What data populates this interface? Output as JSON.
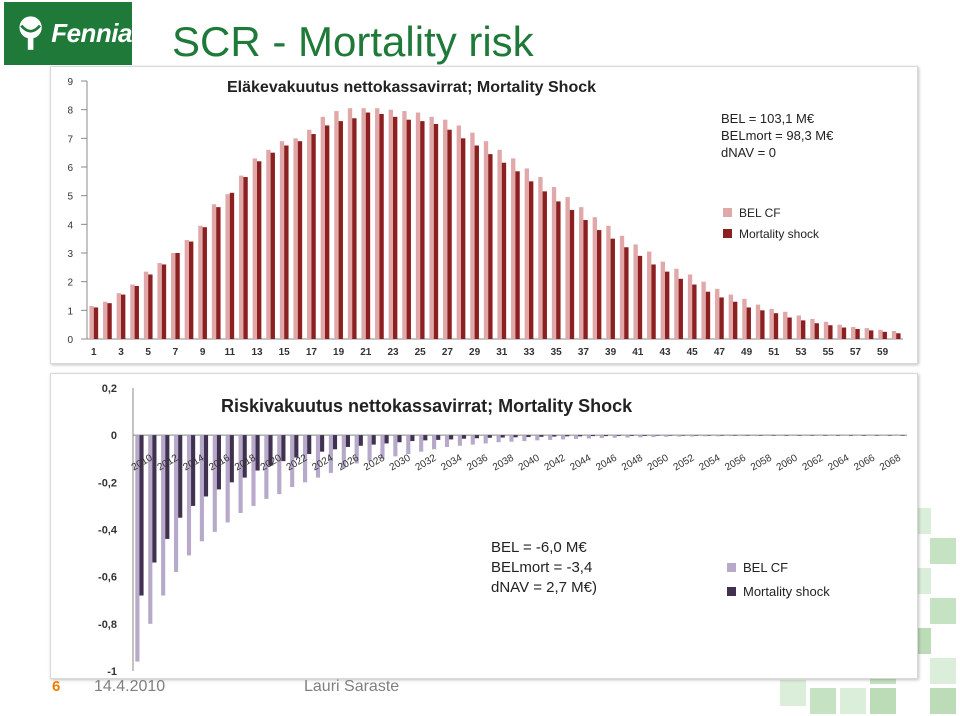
{
  "header": {
    "logo_text": "Fennia",
    "title": "SCR - Mortality risk"
  },
  "footer": {
    "slide_number": "6",
    "date": "14.4.2010",
    "author": "Lauri Saraste"
  },
  "colors": {
    "brand_green": "#1f7a3a",
    "bel_cf_1": "#e0a8a8",
    "mortality_1": "#8c2020",
    "bel_cf_2": "#b7a9c9",
    "mortality_2": "#403151",
    "slide_number": "#f07c00"
  },
  "chart_data": [
    {
      "type": "bar",
      "title": "Eläkevakuutus nettokassavirrat; Mortality Shock",
      "ylim": [
        0,
        9
      ],
      "yticks": [
        "0",
        "1",
        "2",
        "3",
        "4",
        "5",
        "6",
        "7",
        "8",
        "9"
      ],
      "categories": [
        "1",
        "2",
        "3",
        "4",
        "5",
        "6",
        "7",
        "8",
        "9",
        "10",
        "11",
        "12",
        "13",
        "14",
        "15",
        "16",
        "17",
        "18",
        "19",
        "20",
        "21",
        "22",
        "23",
        "24",
        "25",
        "26",
        "27",
        "28",
        "29",
        "30",
        "31",
        "32",
        "33",
        "34",
        "35",
        "36",
        "37",
        "38",
        "39",
        "40",
        "41",
        "42",
        "43",
        "44",
        "45",
        "46",
        "47",
        "48",
        "49",
        "50",
        "51",
        "52",
        "53",
        "54",
        "55",
        "56",
        "57",
        "58",
        "59",
        "60"
      ],
      "series": [
        {
          "name": "BEL CF",
          "values": [
            1.15,
            1.3,
            1.6,
            1.9,
            2.35,
            2.65,
            3.0,
            3.45,
            3.95,
            4.7,
            5.05,
            5.7,
            6.3,
            6.6,
            6.9,
            7.0,
            7.3,
            7.75,
            7.95,
            8.05,
            8.05,
            8.05,
            8.0,
            7.95,
            7.9,
            7.75,
            7.65,
            7.45,
            7.2,
            6.9,
            6.6,
            6.3,
            5.95,
            5.65,
            5.3,
            4.95,
            4.6,
            4.25,
            3.95,
            3.6,
            3.3,
            3.05,
            2.7,
            2.45,
            2.25,
            2.0,
            1.75,
            1.55,
            1.4,
            1.2,
            1.05,
            0.95,
            0.82,
            0.7,
            0.6,
            0.5,
            0.42,
            0.38,
            0.32,
            0.28
          ]
        },
        {
          "name": "Mortality shock",
          "values": [
            1.1,
            1.25,
            1.55,
            1.85,
            2.25,
            2.6,
            3.0,
            3.4,
            3.9,
            4.6,
            5.1,
            5.65,
            6.2,
            6.5,
            6.75,
            6.9,
            7.15,
            7.45,
            7.6,
            7.7,
            7.9,
            7.85,
            7.75,
            7.65,
            7.6,
            7.5,
            7.3,
            7.0,
            6.75,
            6.45,
            6.15,
            5.85,
            5.5,
            5.15,
            4.8,
            4.5,
            4.15,
            3.8,
            3.5,
            3.2,
            2.9,
            2.6,
            2.35,
            2.1,
            1.9,
            1.65,
            1.45,
            1.3,
            1.1,
            1.0,
            0.9,
            0.75,
            0.65,
            0.55,
            0.48,
            0.4,
            0.35,
            0.3,
            0.25,
            0.2
          ]
        }
      ],
      "xtick_labels": [
        "1",
        "3",
        "5",
        "7",
        "9",
        "11",
        "13",
        "15",
        "17",
        "19",
        "21",
        "23",
        "25",
        "27",
        "29",
        "31",
        "33",
        "35",
        "37",
        "39",
        "41",
        "43",
        "45",
        "47",
        "49",
        "51",
        "53",
        "55",
        "57",
        "59"
      ],
      "annotation": [
        "BEL = 103,1 M€",
        "BELmort = 98,3 M€",
        "dNAV = 0"
      ],
      "legend": [
        "BEL CF",
        "Mortality shock"
      ],
      "legend_position": "right"
    },
    {
      "type": "bar",
      "title": "Riskivakuutus nettokassavirrat; Mortality Shock",
      "ylim": [
        -1,
        0.2
      ],
      "yticks": [
        "0,2",
        "0",
        "-0,2",
        "-0,4",
        "-0,6",
        "-0,8",
        "-1"
      ],
      "categories": [
        "2010",
        "2011",
        "2012",
        "2013",
        "2014",
        "2015",
        "2016",
        "2017",
        "2018",
        "2019",
        "2020",
        "2021",
        "2022",
        "2023",
        "2024",
        "2025",
        "2026",
        "2027",
        "2028",
        "2029",
        "2030",
        "2031",
        "2032",
        "2033",
        "2034",
        "2035",
        "2036",
        "2037",
        "2038",
        "2039",
        "2040",
        "2041",
        "2042",
        "2043",
        "2044",
        "2045",
        "2046",
        "2047",
        "2048",
        "2049",
        "2050",
        "2051",
        "2052",
        "2053",
        "2054",
        "2055",
        "2056",
        "2057",
        "2058",
        "2059",
        "2060",
        "2061",
        "2062",
        "2063",
        "2064",
        "2065",
        "2066",
        "2067",
        "2068",
        "2069"
      ],
      "series": [
        {
          "name": "BEL CF",
          "values": [
            -0.96,
            -0.8,
            -0.68,
            -0.58,
            -0.51,
            -0.45,
            -0.41,
            -0.37,
            -0.33,
            -0.3,
            -0.27,
            -0.25,
            -0.22,
            -0.2,
            -0.18,
            -0.16,
            -0.14,
            -0.12,
            -0.11,
            -0.1,
            -0.09,
            -0.08,
            -0.07,
            -0.06,
            -0.05,
            -0.045,
            -0.04,
            -0.035,
            -0.03,
            -0.028,
            -0.025,
            -0.022,
            -0.02,
            -0.018,
            -0.016,
            -0.014,
            -0.012,
            -0.011,
            -0.01,
            -0.009,
            -0.008,
            -0.007,
            -0.006,
            -0.006,
            -0.005,
            -0.005,
            -0.004,
            -0.004,
            -0.004,
            -0.003,
            -0.003,
            -0.003,
            -0.003,
            -0.002,
            -0.002,
            -0.002,
            -0.002,
            -0.002,
            -0.002,
            -0.002
          ]
        },
        {
          "name": "Mortality shock",
          "values": [
            -0.68,
            -0.54,
            -0.44,
            -0.35,
            -0.3,
            -0.26,
            -0.23,
            -0.2,
            -0.18,
            -0.15,
            -0.13,
            -0.11,
            -0.095,
            -0.08,
            -0.07,
            -0.06,
            -0.05,
            -0.045,
            -0.04,
            -0.035,
            -0.03,
            -0.025,
            -0.022,
            -0.02,
            -0.018,
            -0.015,
            -0.013,
            -0.011,
            -0.01,
            -0.009,
            -0.008,
            -0.007,
            -0.006,
            -0.005,
            -0.005,
            -0.004,
            -0.004,
            -0.003,
            -0.003,
            -0.003,
            -0.002,
            -0.002,
            -0.002,
            -0.002,
            -0.002,
            -0.001,
            -0.001,
            -0.001,
            -0.001,
            -0.001,
            -0.001,
            -0.001,
            -0.001,
            -0.001,
            -0.001,
            -0.001,
            -0.001,
            -0.001,
            -0.001,
            -0.001
          ]
        }
      ],
      "xtick_labels": [
        "2010",
        "2012",
        "2014",
        "2016",
        "2018",
        "2020",
        "2022",
        "2024",
        "2026",
        "2028",
        "2030",
        "2032",
        "2034",
        "2036",
        "2038",
        "2040",
        "2042",
        "2044",
        "2046",
        "2048",
        "2050",
        "2052",
        "2054",
        "2056",
        "2058",
        "2060",
        "2062",
        "2064",
        "2066",
        "2068"
      ],
      "annotation": [
        "BEL = -6,0 M€",
        "BELmort = -3,4",
        "dNAV = 2,7 M€)"
      ],
      "legend": [
        "BEL CF",
        "Mortality shock"
      ],
      "legend_position": "bottom-right"
    }
  ]
}
